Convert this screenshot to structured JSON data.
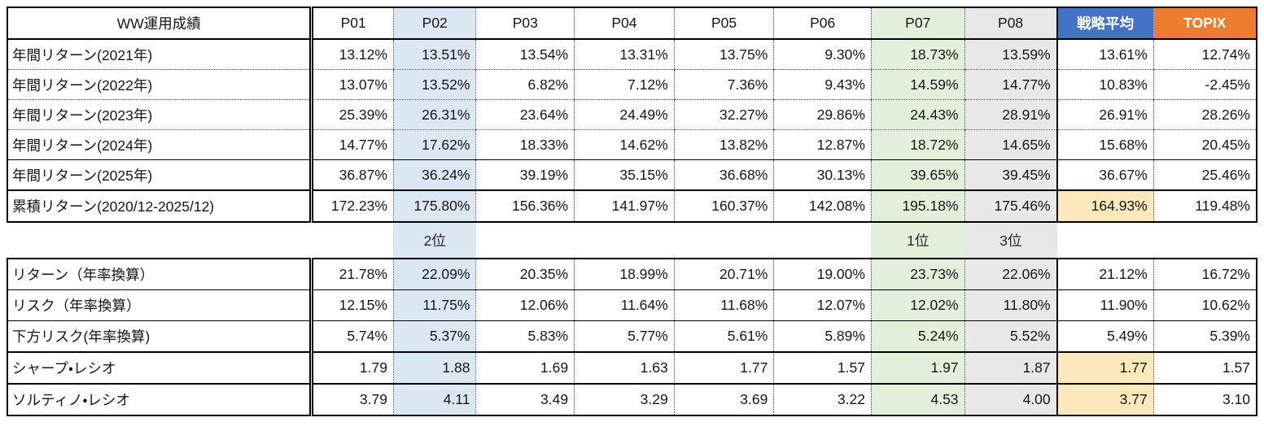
{
  "header": {
    "title": "WW運用成績",
    "columns": [
      "P01",
      "P02",
      "P03",
      "P04",
      "P05",
      "P06",
      "P07",
      "P08",
      "戦略平均",
      "TOPIX"
    ]
  },
  "table1": {
    "rows": [
      {
        "label": "年間リターン(2021年)",
        "values": [
          "13.12%",
          "13.51%",
          "13.54%",
          "13.31%",
          "13.75%",
          "9.30%",
          "18.73%",
          "13.59%",
          "13.61%",
          "12.74%"
        ]
      },
      {
        "label": "年間リターン(2022年)",
        "values": [
          "13.07%",
          "13.52%",
          "6.82%",
          "7.12%",
          "7.36%",
          "9.43%",
          "14.59%",
          "14.77%",
          "10.83%",
          "-2.45%"
        ]
      },
      {
        "label": "年間リターン(2023年)",
        "values": [
          "25.39%",
          "26.31%",
          "23.64%",
          "24.49%",
          "32.27%",
          "29.86%",
          "24.43%",
          "28.91%",
          "26.91%",
          "28.26%"
        ]
      },
      {
        "label": "年間リターン(2024年)",
        "values": [
          "14.77%",
          "17.62%",
          "18.33%",
          "14.62%",
          "13.82%",
          "12.87%",
          "18.72%",
          "14.65%",
          "15.68%",
          "20.45%"
        ]
      },
      {
        "label": "年間リターン(2025年)",
        "values": [
          "36.87%",
          "36.24%",
          "39.19%",
          "35.15%",
          "36.68%",
          "30.13%",
          "39.65%",
          "39.45%",
          "36.67%",
          "25.46%"
        ]
      }
    ],
    "cumulative": {
      "label": "累積リターン(2020/12-2025/12)",
      "values": [
        "172.23%",
        "175.80%",
        "156.36%",
        "141.97%",
        "160.37%",
        "142.08%",
        "195.18%",
        "175.46%",
        "164.93%",
        "119.48%"
      ]
    }
  },
  "rank_row": {
    "p02": "2位",
    "p07": "1位",
    "p08": "3位"
  },
  "table2": {
    "rows": [
      {
        "label": "リターン（年率換算）",
        "values": [
          "21.78%",
          "22.09%",
          "20.35%",
          "18.99%",
          "20.71%",
          "19.00%",
          "23.73%",
          "22.06%",
          "21.12%",
          "16.72%"
        ]
      },
      {
        "label": "リスク（年率換算）",
        "values": [
          "12.15%",
          "11.75%",
          "12.06%",
          "11.64%",
          "11.68%",
          "12.07%",
          "12.02%",
          "11.80%",
          "11.90%",
          "10.62%"
        ]
      },
      {
        "label": "下方リスク(年率換算)",
        "values": [
          "5.74%",
          "5.37%",
          "5.83%",
          "5.77%",
          "5.61%",
          "5.89%",
          "5.24%",
          "5.52%",
          "5.49%",
          "5.39%"
        ]
      },
      {
        "label": "シャープ・レシオ",
        "values": [
          "1.79",
          "1.88",
          "1.69",
          "1.63",
          "1.77",
          "1.57",
          "1.97",
          "1.87",
          "1.77",
          "1.57"
        ]
      },
      {
        "label": "ソルティノ・レシオ",
        "values": [
          "3.79",
          "4.11",
          "3.49",
          "3.29",
          "3.69",
          "3.22",
          "4.53",
          "4.00",
          "3.77",
          "3.10"
        ]
      }
    ]
  },
  "colors": {
    "highlight_blue": "#DBE7F3",
    "highlight_green": "#E3EFDB",
    "highlight_gray": "#E9E8E8",
    "highlight_yellow": "#FBE8BB",
    "avg_header_bg": "#4472C4",
    "topix_header_bg": "#ED7D31"
  }
}
